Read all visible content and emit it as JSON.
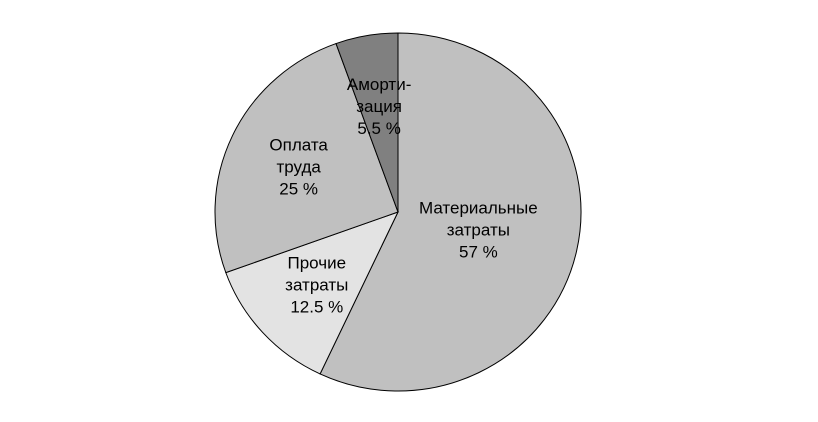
{
  "chart_data": {
    "type": "pie",
    "categories": [
      "Материальные затраты",
      "Прочие затраты",
      "Оплата труда",
      "Аморти-зация"
    ],
    "values": [
      57,
      12.5,
      25,
      5.5
    ],
    "value_labels": [
      "57 %",
      "12.5 %",
      "25 %",
      "5.5 %"
    ],
    "colors": [
      "#c0c0c0",
      "#e3e3e3",
      "#c0c0c0",
      "#808080"
    ]
  }
}
